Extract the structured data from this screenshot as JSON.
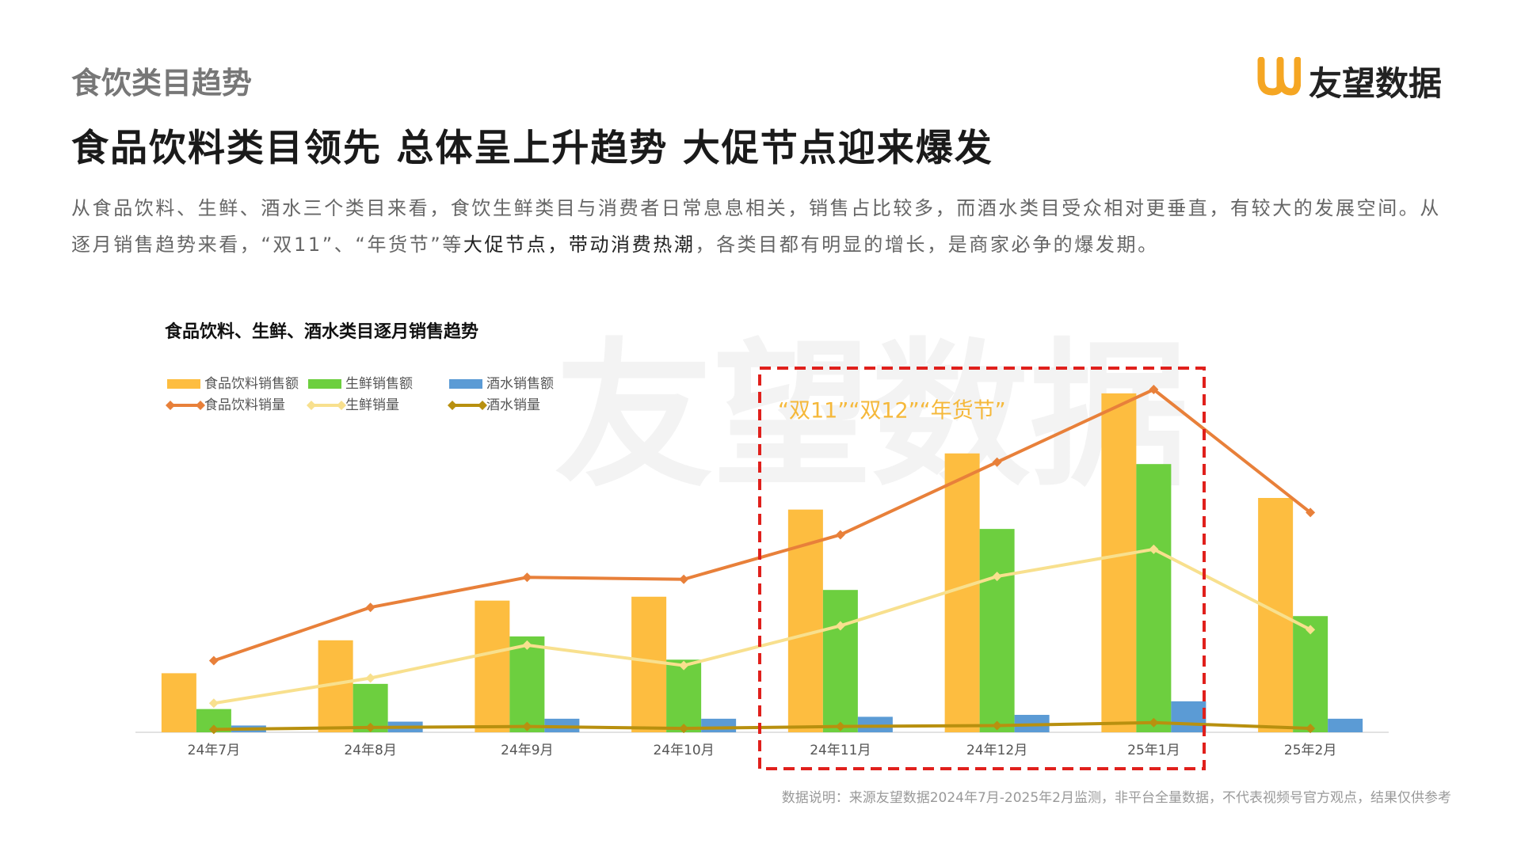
{
  "header": {
    "section": "食饮类目趋势",
    "brand": "友望数据"
  },
  "headline": "食品饮料类目领先 总体呈上升趋势 大促节点迎来爆发",
  "paragraph": [
    "从食品饮料、生鲜、酒水三个类目来看，食饮生鲜类目与消费者日常息息相关，销售占比较多，而酒水类目受众相对更垂直，有较大的发展空间。从逐月销售趋势来看，“双11”、“年货节”等",
    "大促节点，带动消费热潮",
    "，各类目都有明显的增长，是商家必争的爆发期。"
  ],
  "chart_data": {
    "type": "bar",
    "title": "食品饮料、生鲜、酒水类目逐月销售趋势",
    "watermark": "友望数据",
    "categories": [
      "24年7月",
      "24年8月",
      "24年9月",
      "24年10月",
      "24年11月",
      "24年12月",
      "25年1月",
      "25年2月"
    ],
    "series": [
      {
        "name": "食品饮料销售额",
        "type": "bar",
        "color": "#fdbd40",
        "values": [
          61,
          95,
          136,
          140,
          230,
          288,
          350,
          242
        ]
      },
      {
        "name": "生鲜销售额",
        "type": "bar",
        "color": "#6dcf3f",
        "values": [
          24,
          50,
          99,
          75,
          147,
          210,
          277,
          120
        ]
      },
      {
        "name": "酒水销售额",
        "type": "bar",
        "color": "#5b9bd5",
        "values": [
          7,
          11,
          14,
          14,
          16,
          18,
          32,
          14
        ]
      },
      {
        "name": "食品饮料销量",
        "type": "line",
        "color": "#e8803a",
        "values": [
          74,
          129,
          160,
          158,
          204,
          279,
          354,
          227
        ]
      },
      {
        "name": "生鲜销量",
        "type": "line",
        "color": "#f8e08e",
        "values": [
          30,
          56,
          90,
          69,
          110,
          161,
          189,
          106
        ]
      },
      {
        "name": "酒水销量",
        "type": "line",
        "color": "#b8900f",
        "values": [
          3,
          5,
          6,
          4,
          6,
          7,
          10,
          4
        ]
      }
    ],
    "annotation": "“双11”“双12”“年货节”",
    "note": "数据说明：来源友望数据2024年7月-2025年2月监测，非平台全量数据，不代表视频号官方观点，结果仅供参考"
  }
}
